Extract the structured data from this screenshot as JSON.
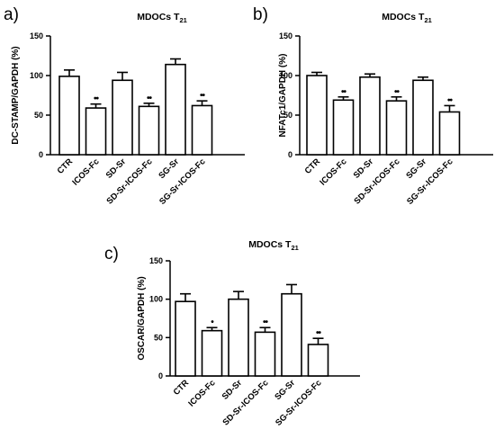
{
  "chart_data": [
    {
      "type": "bar",
      "panel": "a)",
      "title": "MDOCs T",
      "title_sub": "21",
      "ylabel": "DC-STAMP/GAPDH (%)",
      "ylim": [
        0,
        150
      ],
      "yticks": [
        "0",
        "50",
        "100",
        "150"
      ],
      "categories": [
        "CTR",
        "ICOS-Fc",
        "SD-Sr",
        "SD-Sr-ICOS-Fc",
        "SG-Sr",
        "SG-Sr-ICOS-Fc"
      ],
      "values": [
        99,
        59,
        94,
        61,
        114,
        62
      ],
      "errors": [
        8,
        5,
        10,
        4,
        7,
        6
      ],
      "significance": [
        "",
        "••",
        "",
        "••",
        "",
        "••"
      ]
    },
    {
      "type": "bar",
      "panel": "b)",
      "title": "MDOCs T",
      "title_sub": "21",
      "ylabel": "NFATc1/GAPDH (%)",
      "ylim": [
        0,
        150
      ],
      "yticks": [
        "0",
        "50",
        "100",
        "150"
      ],
      "categories": [
        "CTR",
        "ICOS-Fc",
        "SD-Sr",
        "SD-Sr-ICOS-Fc",
        "SG-Sr",
        "SG-Sr-ICOS-Fc"
      ],
      "values": [
        100,
        69,
        98,
        68,
        94,
        54
      ],
      "errors": [
        4,
        4,
        4,
        5,
        4,
        8
      ],
      "significance": [
        "",
        "••",
        "",
        "••",
        "",
        "••"
      ]
    },
    {
      "type": "bar",
      "panel": "c)",
      "title": "MDOCs T",
      "title_sub": "21",
      "ylabel": "OSCAR/GAPDH (%)",
      "ylim": [
        0,
        150
      ],
      "yticks": [
        "0",
        "50",
        "100",
        "150"
      ],
      "categories": [
        "CTR",
        "ICOS-Fc",
        "SD-Sr",
        "SD-Sr-ICOS-Fc",
        "SG-Sr",
        "SG-Sr-ICOS-Fc"
      ],
      "values": [
        97,
        59,
        100,
        57,
        107,
        41
      ],
      "errors": [
        10,
        4,
        10,
        6,
        12,
        8
      ],
      "significance": [
        "",
        "•",
        "",
        "••",
        "",
        "••"
      ]
    }
  ]
}
